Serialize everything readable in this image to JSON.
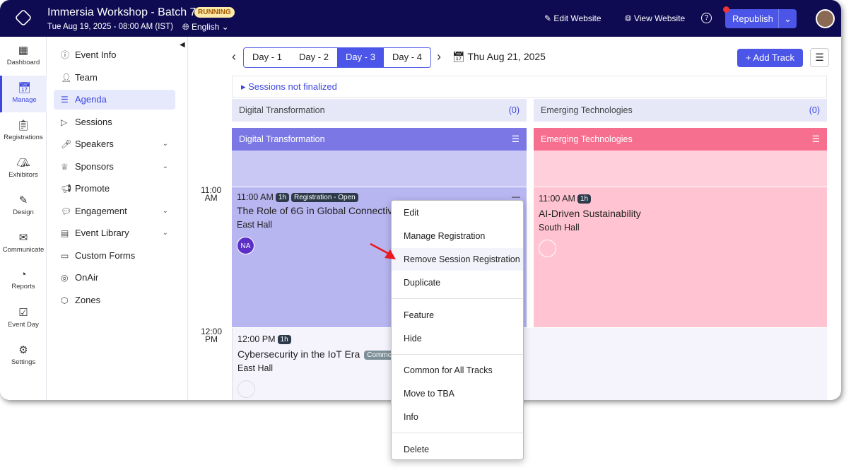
{
  "header": {
    "title": "Immersia Workshop - Batch 7",
    "status": "RUNNING",
    "datetime": "Tue Aug 19, 2025 - 08:00 AM (IST)",
    "language": "English",
    "edit_website": "Edit Website",
    "view_website": "View Website",
    "republish": "Republish"
  },
  "rail": [
    {
      "label": "Dashboard",
      "icon": "grid-icon"
    },
    {
      "label": "Manage",
      "icon": "calendar-gear-icon"
    },
    {
      "label": "Registrations",
      "icon": "clipboard-icon"
    },
    {
      "label": "Exhibitors",
      "icon": "booth-icon"
    },
    {
      "label": "Design",
      "icon": "design-icon"
    },
    {
      "label": "Communicate",
      "icon": "mail-icon"
    },
    {
      "label": "Reports",
      "icon": "pie-icon"
    },
    {
      "label": "Event Day",
      "icon": "calendar-check-icon"
    },
    {
      "label": "Settings",
      "icon": "gear-icon"
    }
  ],
  "nav": [
    {
      "label": "Event Info"
    },
    {
      "label": "Team"
    },
    {
      "label": "Agenda"
    },
    {
      "label": "Sessions"
    },
    {
      "label": "Speakers",
      "expandable": true
    },
    {
      "label": "Sponsors",
      "expandable": true
    },
    {
      "label": "Promote"
    },
    {
      "label": "Engagement",
      "expandable": true
    },
    {
      "label": "Event Library",
      "expandable": true
    },
    {
      "label": "Custom Forms"
    },
    {
      "label": "OnAir"
    },
    {
      "label": "Zones"
    }
  ],
  "agenda": {
    "days": [
      "Day - 1",
      "Day - 2",
      "Day - 3",
      "Day - 4"
    ],
    "active_day": "Day - 3",
    "date": "Thu Aug 21, 2025",
    "add_track": "Add Track",
    "sessions_not_finalized": "Sessions not finalized",
    "tba": [
      {
        "name": "Digital Transformation",
        "count": "(0)"
      },
      {
        "name": "Emerging Technologies",
        "count": "(0)"
      }
    ],
    "tracks": [
      {
        "name": "Digital Transformation",
        "color": "#7b78e6"
      },
      {
        "name": "Emerging Technologies",
        "color": "#f76f8f"
      }
    ],
    "times": [
      {
        "h": "11:00",
        "p": "AM"
      },
      {
        "h": "12:00",
        "p": "PM"
      }
    ],
    "sessions": [
      {
        "time": "11:00 AM",
        "duration": "1h",
        "badge": "Registration - Open",
        "title": "The Role of 6G in Global Connectivity",
        "location": "East Hall",
        "avatar": "NA"
      },
      {
        "time": "11:00 AM",
        "duration": "1h",
        "title": "AI-Driven Sustainability",
        "location": "South Hall"
      },
      {
        "time": "12:00 PM",
        "duration": "1h",
        "badge": "Common",
        "title": "Cybersecurity in the IoT Era",
        "location": "East Hall"
      }
    ]
  },
  "context_menu": [
    "Edit",
    "Manage Registration",
    "Remove Session Registration",
    "Duplicate",
    "Feature",
    "Hide",
    "Common for All Tracks",
    "Move to TBA",
    "Info",
    "Delete"
  ]
}
